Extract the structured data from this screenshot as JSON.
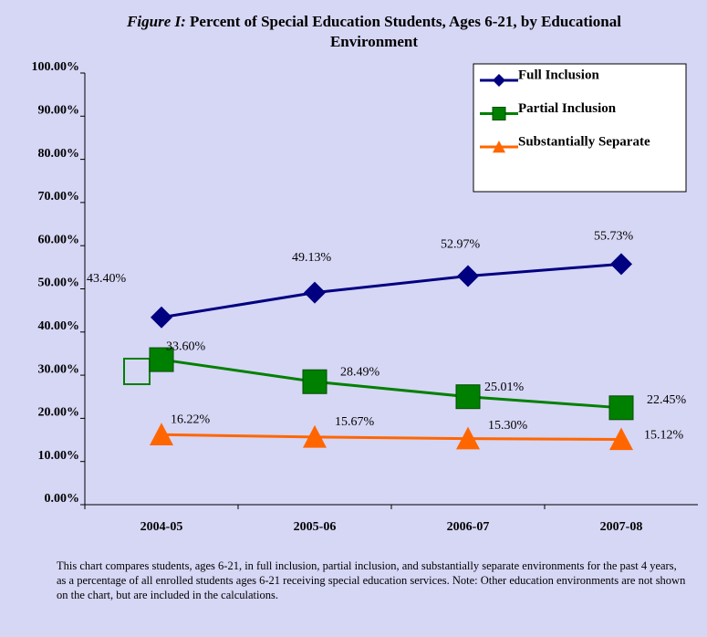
{
  "chart_data": {
    "type": "line",
    "title_prefix": "Figure I:",
    "title": "Percent of Special Education Students, Ages 6-21, by Educational",
    "title_line2": "Environment",
    "categories": [
      "2004-05",
      "2005-06",
      "2006-07",
      "2007-08"
    ],
    "series": [
      {
        "name": "Full Inclusion",
        "color": "#000080",
        "marker": "diamond",
        "values": [
          43.4,
          49.13,
          52.97,
          55.73
        ],
        "value_labels": [
          "43.40%",
          "49.13%",
          "52.97%",
          "55.73%"
        ]
      },
      {
        "name": "Partial Inclusion",
        "color": "#008000",
        "marker": "square",
        "values": [
          33.6,
          28.49,
          25.01,
          22.45
        ],
        "value_labels": [
          "33.60%",
          "28.49%",
          "25.01%",
          "22.45%"
        ]
      },
      {
        "name": "Substantially Separate",
        "color": "#ff6600",
        "marker": "triangle",
        "values": [
          16.22,
          15.67,
          15.3,
          15.12
        ],
        "value_labels": [
          "16.22%",
          "15.67%",
          "15.30%",
          "15.12%"
        ]
      }
    ],
    "ylim": [
      0,
      100
    ],
    "yticks": [
      {
        "value": 0,
        "label": "0.00%"
      },
      {
        "value": 10,
        "label": "10.00%"
      },
      {
        "value": 20,
        "label": "20.00%"
      },
      {
        "value": 30,
        "label": "30.00%"
      },
      {
        "value": 40,
        "label": "40.00%"
      },
      {
        "value": 50,
        "label": "50.00%"
      },
      {
        "value": 60,
        "label": "60.00%"
      },
      {
        "value": 70,
        "label": "70.00%"
      },
      {
        "value": 80,
        "label": "80.00%"
      },
      {
        "value": 90,
        "label": "90.00%"
      },
      {
        "value": 100,
        "label": "100.00%"
      }
    ],
    "legend": "top-right"
  },
  "footnote": "This chart compares students, ages 6-21, in full inclusion, partial inclusion, and substantially separate environments for the past 4 years, as a percentage of all enrolled students ages 6-21 receiving special education services. Note: Other education environments are not shown on the chart, but are included in the calculations."
}
